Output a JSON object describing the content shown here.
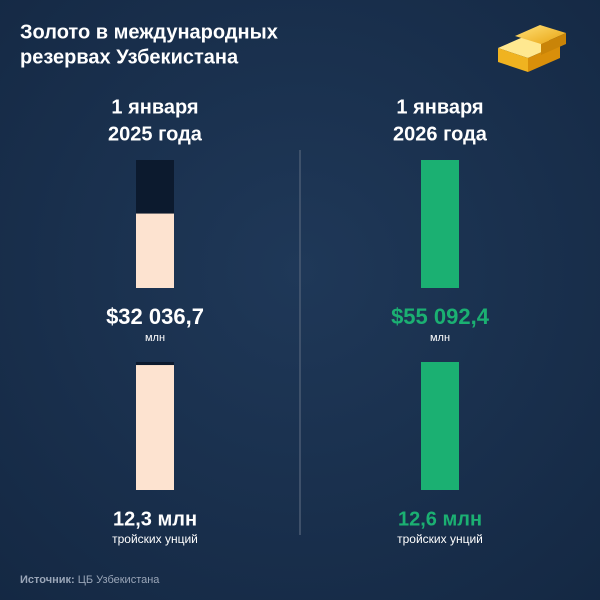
{
  "chart_data": {
    "type": "bar",
    "title": [
      "Золото в международных",
      "резервах Узбекистана"
    ],
    "categories": [
      [
        "1 января",
        "2025 года"
      ],
      [
        "1 января",
        "2026 года"
      ]
    ],
    "colors": [
      "#fde3d0",
      "#1bb072"
    ],
    "label_colors": [
      "#ffffff",
      "#1bb072"
    ],
    "series": [
      {
        "values": [
          32036.7,
          55092.4
        ],
        "value_labels": [
          "$32 036,7",
          "$55 092,4"
        ],
        "unit": "млн"
      },
      {
        "values": [
          12.3,
          12.6
        ],
        "value_labels": [
          "12,3 млн",
          "12,6 млн"
        ],
        "unit": "тройских унций"
      }
    ],
    "source": {
      "label": "Источник:",
      "text": "ЦБ Узбекистана"
    }
  }
}
